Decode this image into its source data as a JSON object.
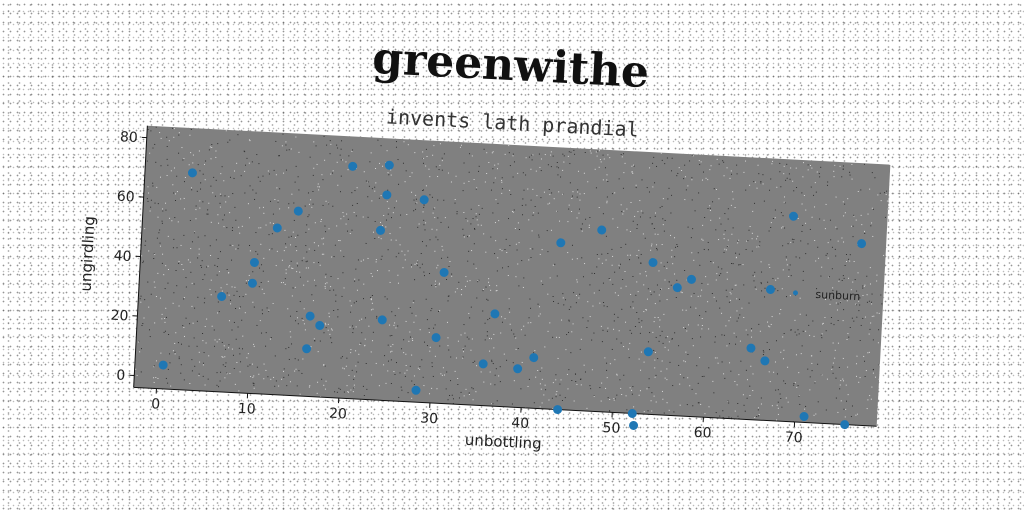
{
  "chart_data": {
    "type": "scatter",
    "title": "greenwithe",
    "subtitle": "invents lath prandial",
    "xlabel": "unbottling",
    "ylabel": "ungirdling",
    "xlim": [
      -2.5,
      79
    ],
    "ylim": [
      -4,
      84
    ],
    "xticks": [
      0,
      10,
      20,
      30,
      40,
      50,
      60,
      70
    ],
    "yticks": [
      0,
      20,
      40,
      60,
      80
    ],
    "grid": false,
    "legend_position": "right",
    "background_color": "#808080",
    "series": [
      {
        "name": "sunburn",
        "color": "#1f77b4",
        "x": [
          2.7,
          6.6,
          10,
          9.9,
          12.3,
          14.5,
          16.4,
          17.5,
          16.2,
          0.6,
          20.2,
          23.6,
          24.2,
          24.1,
          24.3,
          28.2,
          28.4,
          30.3,
          30.8,
          35.6,
          36.6,
          39.4,
          41.1,
          43.4,
          44,
          47.8,
          52.2,
          52.4,
          53.6,
          53.6,
          56.4,
          57.9,
          64.8,
          66.4,
          66.6,
          68.7,
          71,
          75.5,
          76.3
        ],
        "y": [
          69,
          28,
          40,
          33,
          52,
          58,
          23,
          20,
          12,
          4,
          74,
          53,
          75,
          65,
          23,
          64,
          0,
          18,
          40,
          10,
          27,
          9,
          13,
          52,
          -4,
          57,
          -4,
          -8,
          47,
          17,
          39,
          42,
          20,
          16,
          40,
          65,
          -2,
          -4,
          57
        ]
      }
    ]
  }
}
